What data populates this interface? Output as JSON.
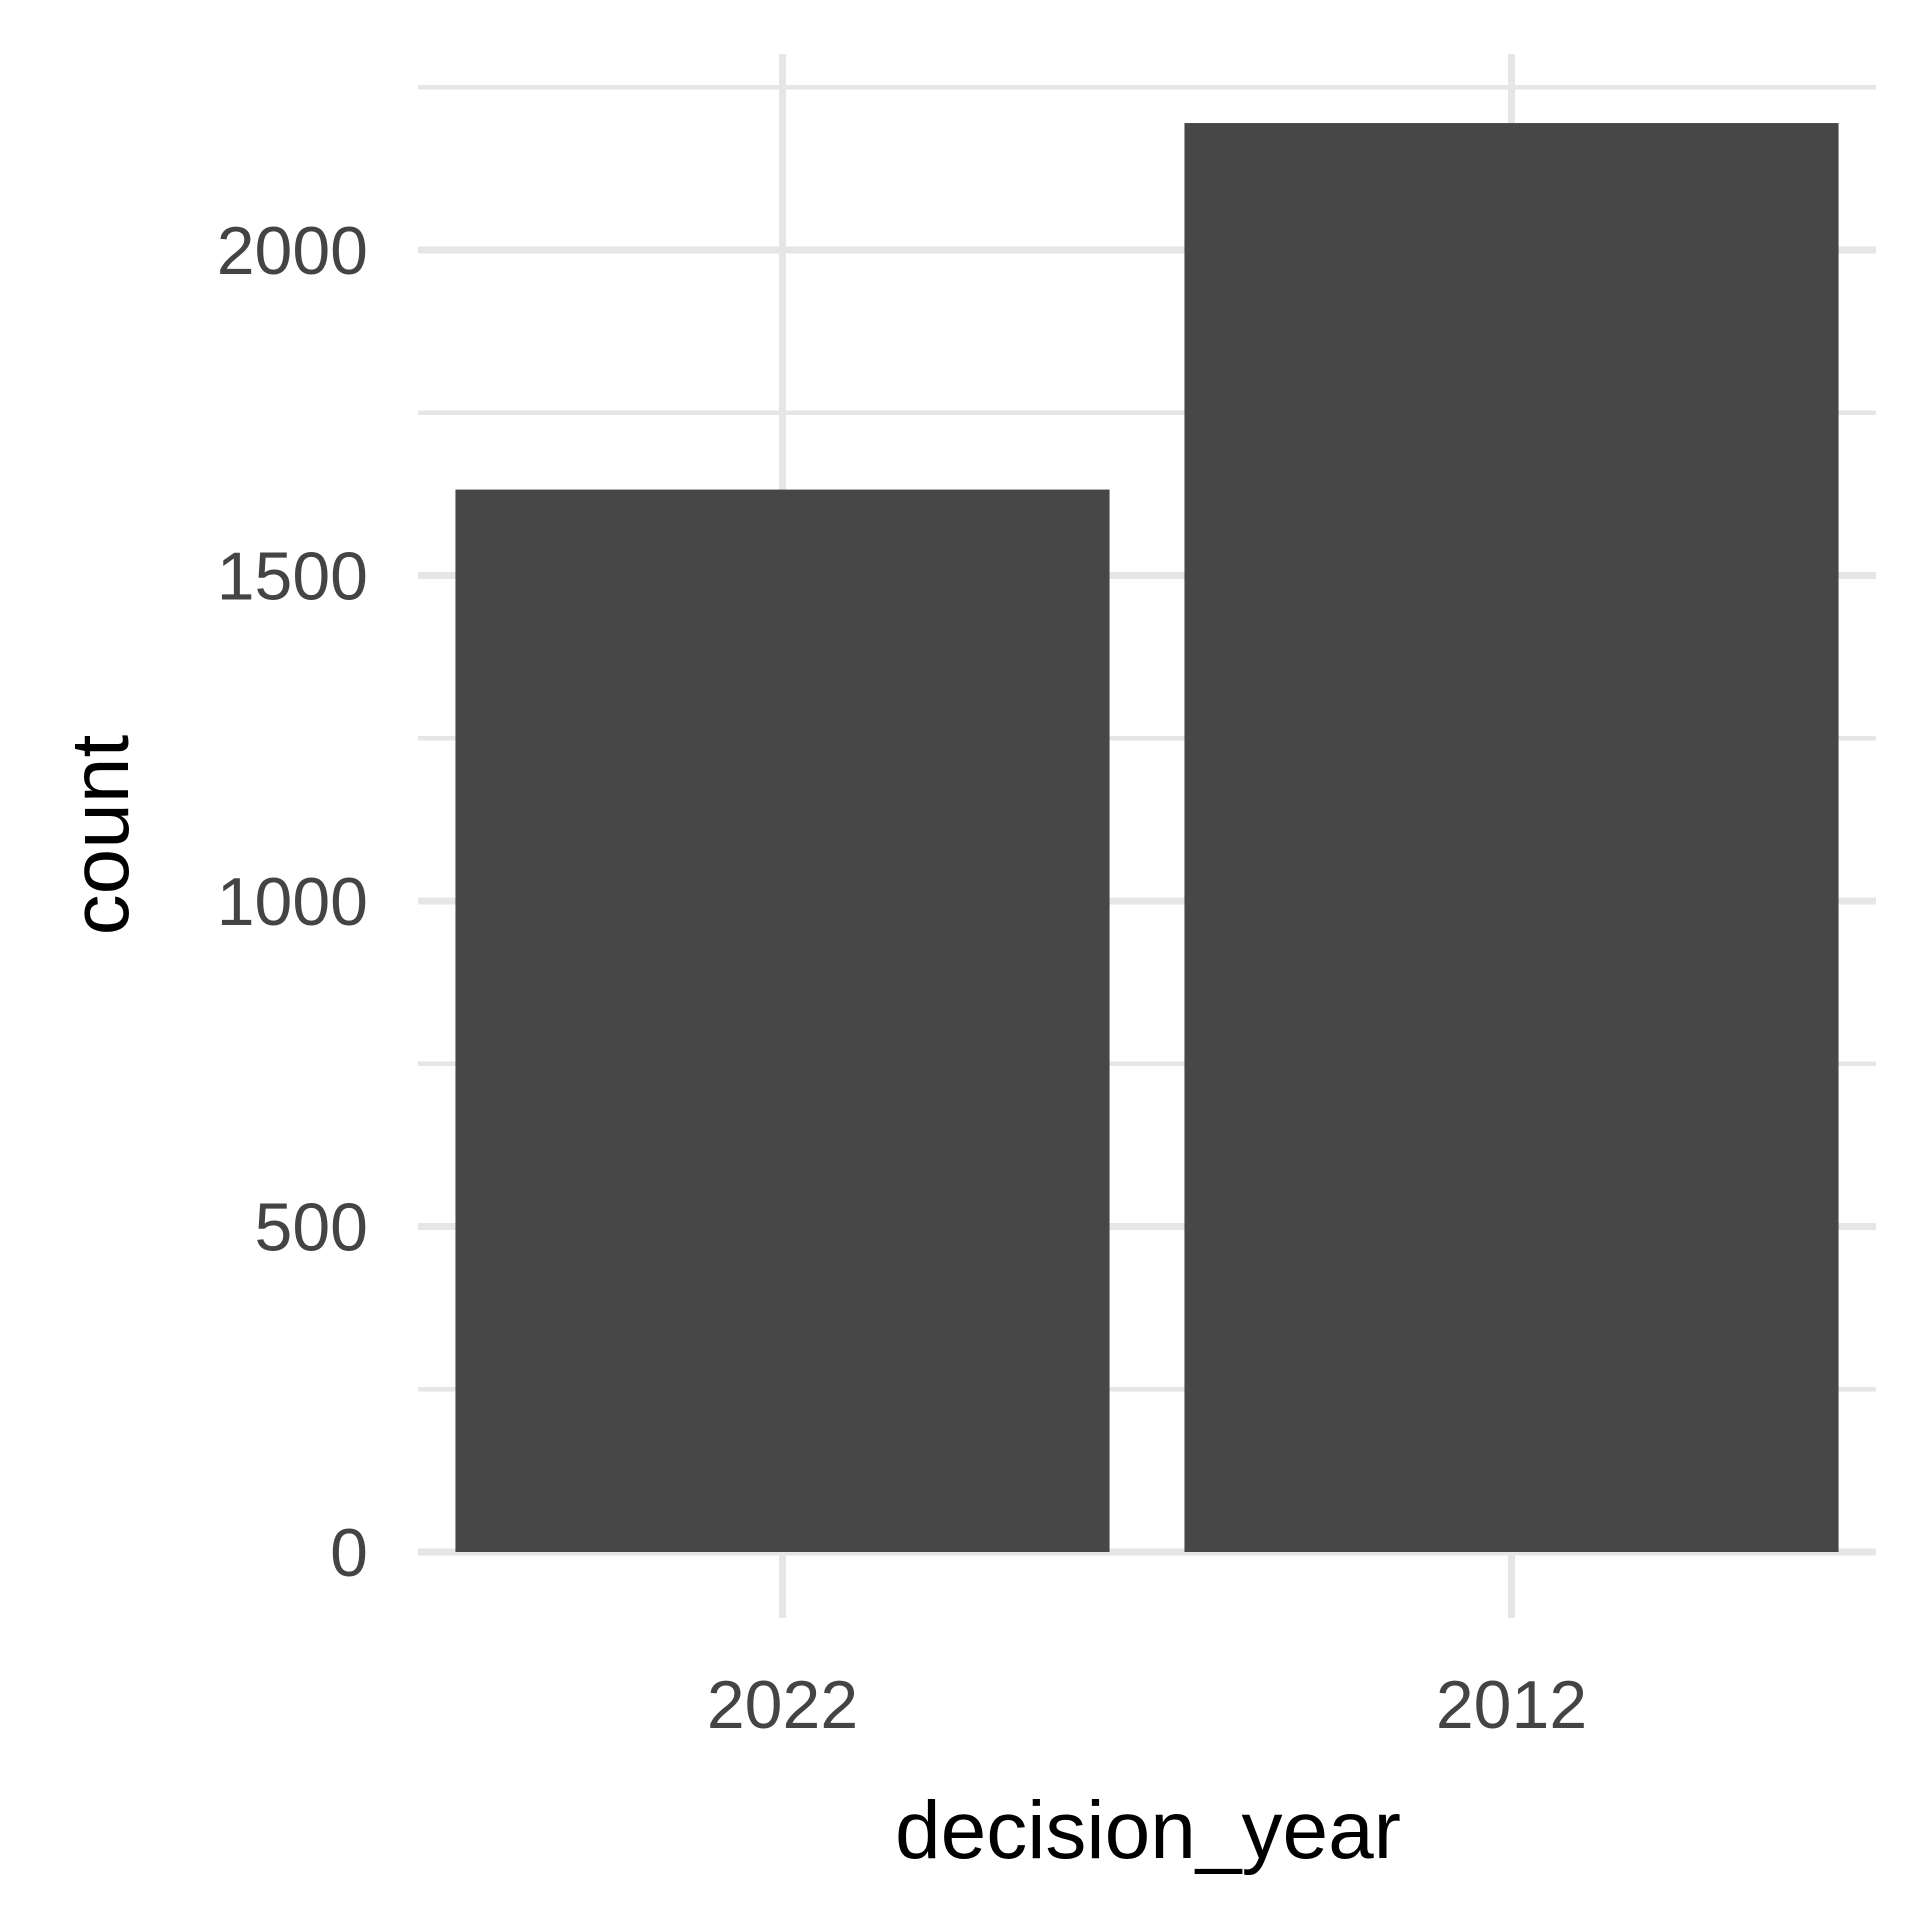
{
  "chart_data": {
    "type": "bar",
    "title": "",
    "xlabel": "decision_year",
    "ylabel": "count",
    "categories": [
      "2022",
      "2012"
    ],
    "values": [
      1632,
      2195
    ],
    "ylim": [
      0,
      2250
    ],
    "yticks": [
      0,
      500,
      1000,
      1500,
      2000
    ],
    "ytick_labels": [
      "0",
      "500",
      "1000",
      "1500",
      "2000"
    ],
    "grid": true,
    "legend": "none",
    "bar_color": "#474747",
    "grid_color": "#e6e6e6",
    "background": "#ffffff"
  }
}
